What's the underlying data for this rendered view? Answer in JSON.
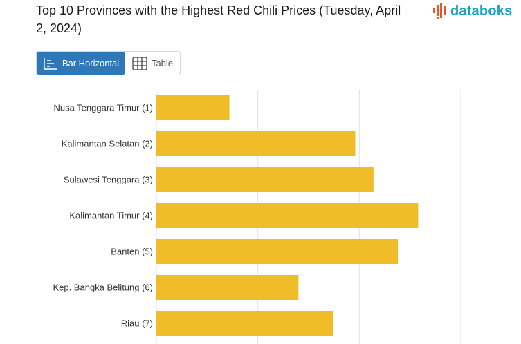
{
  "header": {
    "title": "Top 10 Provinces with the Highest Red Chili Prices (Tuesday, April 2, 2024)",
    "logo_text": "databoks",
    "logo_icon": "databoks-bars-icon"
  },
  "view_toggle": {
    "bar_label": "Bar Horizontal",
    "table_label": "Table",
    "bar_icon": "bar-chart-icon",
    "table_icon": "table-grid-icon",
    "active": "bar"
  },
  "chart_data": {
    "type": "bar",
    "orientation": "horizontal",
    "title": "Top 10 Provinces with the Highest Red Chili Prices (Tuesday, April 2, 2024)",
    "categories": [
      "Nusa Tenggara Timur (1)",
      "Kalimantan Selatan (2)",
      "Sulawesi Tenggara (3)",
      "Kalimantan Timur (4)",
      "Banten (5)",
      "Kep. Bangka Belitung (6)",
      "Riau (7)"
    ],
    "values": [
      36,
      98,
      107,
      129,
      119,
      70,
      87
    ],
    "xlim": [
      0,
      150
    ],
    "gridlines": [
      0,
      50,
      100,
      150
    ],
    "grid": true,
    "bar_color": "#f0bd28",
    "grid_color": "#e2e2e2"
  }
}
